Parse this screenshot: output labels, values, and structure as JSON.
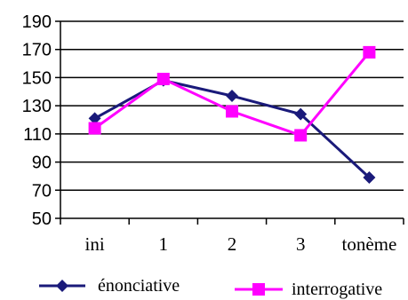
{
  "chart_data": {
    "type": "line",
    "categories": [
      "ini",
      "1",
      "2",
      "3",
      "tonème"
    ],
    "ylim": [
      50,
      190
    ],
    "yticks": [
      50,
      70,
      90,
      110,
      130,
      150,
      170,
      190
    ],
    "grid": true,
    "legend_placement": "bottom",
    "series": [
      {
        "name": "énonciative",
        "values": [
          121,
          148,
          137,
          124,
          79
        ],
        "color": "#1a1a7a",
        "marker": "diamond"
      },
      {
        "name": "interrogative",
        "values": [
          114,
          149,
          126,
          109,
          168
        ],
        "color": "#ff00ff",
        "marker": "square"
      }
    ]
  }
}
